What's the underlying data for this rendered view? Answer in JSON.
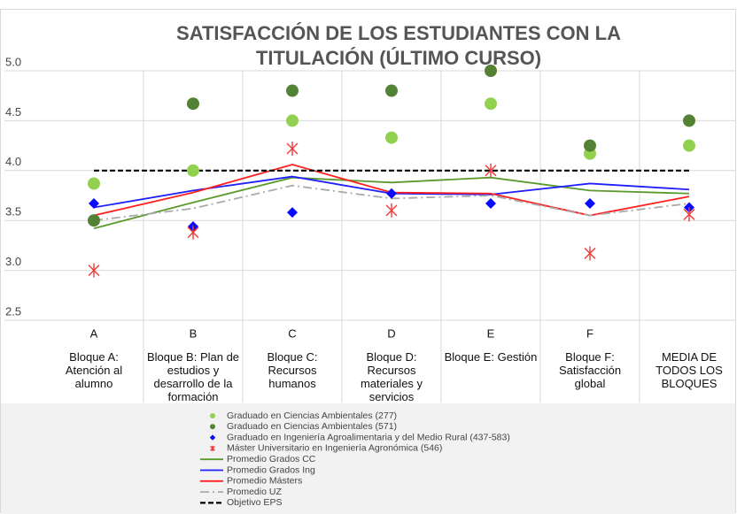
{
  "chart_data": {
    "type": "line",
    "title": "SATISFACCIÓN DE LOS ESTUDIANTES CON LA TITULACIÓN (ÚLTIMO CURSO)",
    "categories": [
      "A",
      "B",
      "C",
      "D",
      "E",
      "F",
      null
    ],
    "category_names": [
      "Bloque A: Atención al alumno",
      "Bloque B: Plan de estudios y desarrollo de la formación",
      "Bloque C: Recursos humanos",
      "Bloque D: Recursos materiales y servicios",
      "Bloque E: Gestión",
      "Bloque F: Satisfacción global",
      "MEDIA DE TODOS LOS BLOQUES"
    ],
    "ylim": [
      2.5,
      5.0
    ],
    "yticks": [
      2.5,
      {
        "value": 3.0,
        "label": "3.0"
      },
      3.5,
      {
        "value": 4.0,
        "label": "4.0"
      },
      4.5,
      {
        "value": 5.0,
        "label": "5.0"
      }
    ],
    "grid": true,
    "legend": "bottom",
    "series": [
      {
        "name": "Graduado en Ciencias Ambientales (277)",
        "mode": "markers",
        "marker": "circle",
        "color": "#92d050",
        "values": [
          3.87,
          4.0,
          4.5,
          4.33,
          4.67,
          4.17,
          4.25
        ]
      },
      {
        "name": "Graduado en Ciencias Ambientales (571)",
        "mode": "markers",
        "marker": "circle",
        "color": "#548235",
        "values": [
          3.5,
          4.67,
          4.8,
          4.8,
          5.0,
          4.25,
          4.5
        ]
      },
      {
        "name": "Graduado en Ingeniería Agroalimentaria y del Medio Rural (437-583)",
        "mode": "markers",
        "marker": "diamond",
        "color": "#0a0aff",
        "values": [
          3.67,
          3.44,
          3.58,
          3.77,
          3.67,
          3.67,
          3.63
        ]
      },
      {
        "name": "Máster Universitario en Ingeniería Agronómica (546)",
        "mode": "markers",
        "marker": "x",
        "color": "#f03a3a",
        "values": [
          3.0,
          3.38,
          4.22,
          3.6,
          4.0,
          3.17,
          3.56
        ]
      },
      {
        "name": "Promedio Grados CC",
        "mode": "lines",
        "dash": "solid",
        "color": "#5b9a2e",
        "values": [
          3.42,
          3.68,
          3.93,
          3.88,
          3.93,
          3.8,
          3.77
        ]
      },
      {
        "name": "Promedio Grados Ing",
        "mode": "lines",
        "dash": "solid",
        "color": "#1f1fff",
        "values": [
          3.63,
          3.8,
          3.94,
          3.77,
          3.76,
          3.87,
          3.81
        ]
      },
      {
        "name": "Promedio Másters",
        "mode": "lines",
        "dash": "solid",
        "color": "#ff1f1f",
        "values": [
          3.55,
          3.78,
          4.06,
          3.78,
          3.77,
          3.55,
          3.74
        ]
      },
      {
        "name": "Promedio UZ",
        "mode": "lines",
        "dash": "dashdot",
        "color": "#aaaaaa",
        "values": [
          3.5,
          3.62,
          3.85,
          3.72,
          3.75,
          3.55,
          3.67
        ]
      },
      {
        "name": "Objetivo EPS",
        "mode": "lines",
        "dash": "dashed",
        "color": "#000000",
        "values": [
          4.0,
          4.0,
          4.0,
          4.0,
          4.0,
          4.0,
          4.0
        ]
      }
    ]
  }
}
